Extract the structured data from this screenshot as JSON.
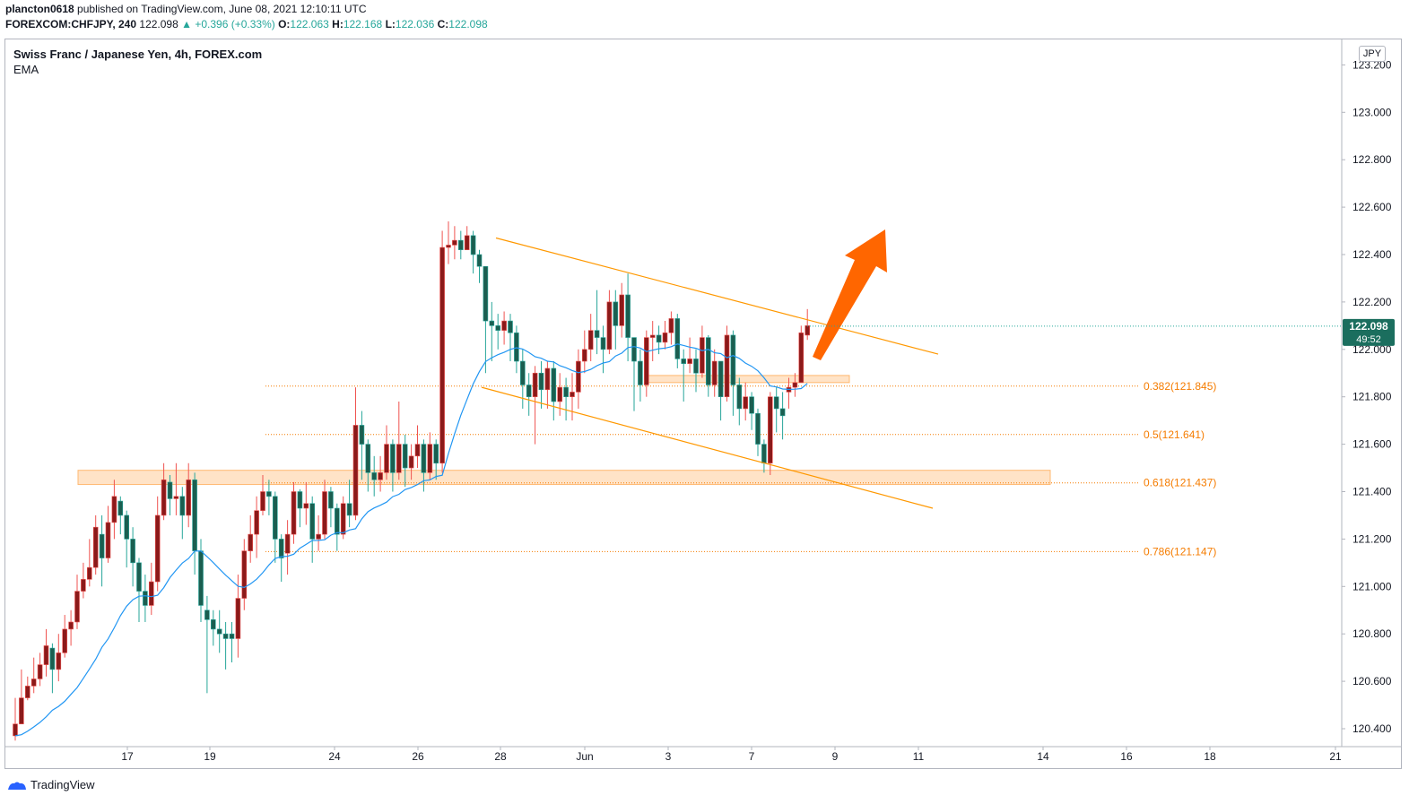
{
  "header": {
    "publisher": "plancton0618",
    "published_text": "published on TradingView.com, June 08, 2021 12:10:11 UTC",
    "symbol": "FOREXCOM:CHFJPY, 240",
    "last": "122.098",
    "change": "▲ +0.396 (+0.33%)",
    "o_label": "O:",
    "o_val": "122.063",
    "h_label": "H:",
    "h_val": "122.168",
    "l_label": "L:",
    "l_val": "122.036",
    "c_label": "C:",
    "c_val": "122.098"
  },
  "legend": {
    "title": "Swiss Franc / Japanese Yen, 4h, FOREX.com",
    "indicator": "EMA"
  },
  "currency_badge": "JPY",
  "footer": {
    "brand": "TradingView"
  },
  "colors": {
    "up": "#26a69a",
    "down": "#ef5350",
    "body_up": "#1b5e50",
    "body_down": "#8b1a1a",
    "ema": "#2196f3",
    "fib": "#f57c00",
    "zone": "#ffcc99",
    "arrow": "#ff6600",
    "channel": "#ff9800"
  },
  "chart_data": {
    "type": "candlestick",
    "title": "Swiss Franc / Japanese Yen, 4h, FOREX.com",
    "ylim": [
      120.32,
      123.3
    ],
    "yticks": [
      "123.200",
      "123.000",
      "122.800",
      "122.600",
      "122.400",
      "122.200",
      "122.000",
      "121.800",
      "121.600",
      "121.400",
      "121.200",
      "121.000",
      "120.800",
      "120.600",
      "120.400"
    ],
    "xticks": [
      "17",
      "19",
      "24",
      "26",
      "28",
      "Jun",
      "3",
      "7",
      "9",
      "11",
      "14",
      "16",
      "18",
      "21"
    ],
    "current_price": "122.098",
    "countdown": "49:52",
    "fib_levels": [
      {
        "label": "0.382(121.845)",
        "value": 121.845
      },
      {
        "label": "0.5(121.641)",
        "value": 121.641
      },
      {
        "label": "0.618(121.437)",
        "value": 121.437
      },
      {
        "label": "0.786(121.147)",
        "value": 121.147
      }
    ],
    "zones": [
      {
        "name": "support-zone",
        "y_top": 121.49,
        "y_bottom": 121.43
      },
      {
        "name": "resistance-zone",
        "y_top": 121.89,
        "y_bottom": 121.86
      }
    ],
    "channel": {
      "upper": [
        {
          "t": 0,
          "v": 122.47
        },
        {
          "t": 1,
          "v": 121.98
        }
      ],
      "lower": [
        {
          "t": 0,
          "v": 121.84
        },
        {
          "t": 1,
          "v": 121.33
        }
      ]
    },
    "candles": [
      [
        120.42,
        120.53,
        120.35,
        120.37
      ],
      [
        120.53,
        120.65,
        120.42,
        120.42
      ],
      [
        120.58,
        120.62,
        120.52,
        120.53
      ],
      [
        120.61,
        120.7,
        120.55,
        120.58
      ],
      [
        120.67,
        120.72,
        120.58,
        120.61
      ],
      [
        120.75,
        120.82,
        120.62,
        120.67
      ],
      [
        120.65,
        120.76,
        120.55,
        120.74
      ],
      [
        120.72,
        120.8,
        120.6,
        120.65
      ],
      [
        120.82,
        120.88,
        120.7,
        120.72
      ],
      [
        120.85,
        120.9,
        120.75,
        120.82
      ],
      [
        120.98,
        121.05,
        120.82,
        120.85
      ],
      [
        121.03,
        121.1,
        120.95,
        120.98
      ],
      [
        121.08,
        121.2,
        121.0,
        121.03
      ],
      [
        121.25,
        121.3,
        121.05,
        121.08
      ],
      [
        121.12,
        121.3,
        121.0,
        121.22
      ],
      [
        121.27,
        121.34,
        121.1,
        121.12
      ],
      [
        121.38,
        121.45,
        121.2,
        121.27
      ],
      [
        121.3,
        121.38,
        121.22,
        121.36
      ],
      [
        121.2,
        121.32,
        121.08,
        121.3
      ],
      [
        121.1,
        121.25,
        121.0,
        121.2
      ],
      [
        120.98,
        121.12,
        120.85,
        121.1
      ],
      [
        120.92,
        121.05,
        120.85,
        120.98
      ],
      [
        121.02,
        121.1,
        120.88,
        120.92
      ],
      [
        121.3,
        121.38,
        120.98,
        121.02
      ],
      [
        121.45,
        121.52,
        121.28,
        121.3
      ],
      [
        121.37,
        121.47,
        121.3,
        121.44
      ],
      [
        121.38,
        121.52,
        121.3,
        121.37
      ],
      [
        121.3,
        121.42,
        121.2,
        121.38
      ],
      [
        121.45,
        121.52,
        121.25,
        121.3
      ],
      [
        121.15,
        121.48,
        121.05,
        121.45
      ],
      [
        120.92,
        121.2,
        120.85,
        121.15
      ],
      [
        120.86,
        120.96,
        120.55,
        120.9
      ],
      [
        120.82,
        120.9,
        120.75,
        120.86
      ],
      [
        120.8,
        120.9,
        120.72,
        120.82
      ],
      [
        120.78,
        120.85,
        120.65,
        120.8
      ],
      [
        120.78,
        120.85,
        120.68,
        120.8
      ],
      [
        120.95,
        121.05,
        120.7,
        120.78
      ],
      [
        121.15,
        121.2,
        120.9,
        120.95
      ],
      [
        121.22,
        121.3,
        121.1,
        121.15
      ],
      [
        121.32,
        121.38,
        121.12,
        121.22
      ],
      [
        121.4,
        121.47,
        121.3,
        121.32
      ],
      [
        121.38,
        121.45,
        121.3,
        121.4
      ],
      [
        121.2,
        121.4,
        121.1,
        121.38
      ],
      [
        121.12,
        121.22,
        121.02,
        121.2
      ],
      [
        121.22,
        121.28,
        121.05,
        121.14
      ],
      [
        121.4,
        121.44,
        121.18,
        121.22
      ],
      [
        121.33,
        121.41,
        121.25,
        121.4
      ],
      [
        121.35,
        121.44,
        121.26,
        121.33
      ],
      [
        121.2,
        121.38,
        121.1,
        121.35
      ],
      [
        121.22,
        121.3,
        121.15,
        121.2
      ],
      [
        121.4,
        121.45,
        121.2,
        121.22
      ],
      [
        121.33,
        121.42,
        121.25,
        121.4
      ],
      [
        121.22,
        121.35,
        121.15,
        121.33
      ],
      [
        121.35,
        121.38,
        121.2,
        121.22
      ],
      [
        121.3,
        121.45,
        121.25,
        121.35
      ],
      [
        121.68,
        121.84,
        121.28,
        121.3
      ],
      [
        121.6,
        121.74,
        121.45,
        121.68
      ],
      [
        121.48,
        121.62,
        121.4,
        121.6
      ],
      [
        121.45,
        121.55,
        121.38,
        121.48
      ],
      [
        121.48,
        121.55,
        121.4,
        121.45
      ],
      [
        121.6,
        121.68,
        121.45,
        121.48
      ],
      [
        121.48,
        121.62,
        121.4,
        121.6
      ],
      [
        121.6,
        121.78,
        121.45,
        121.48
      ],
      [
        121.5,
        121.64,
        121.42,
        121.6
      ],
      [
        121.55,
        121.6,
        121.45,
        121.5
      ],
      [
        121.6,
        121.68,
        121.5,
        121.55
      ],
      [
        121.48,
        121.62,
        121.4,
        121.6
      ],
      [
        121.6,
        121.65,
        121.45,
        121.48
      ],
      [
        121.52,
        121.62,
        121.45,
        121.6
      ],
      [
        122.43,
        122.5,
        121.48,
        121.52
      ],
      [
        122.44,
        122.54,
        122.36,
        122.43
      ],
      [
        122.46,
        122.52,
        122.38,
        122.44
      ],
      [
        122.42,
        122.5,
        122.38,
        122.46
      ],
      [
        122.48,
        122.52,
        122.42,
        122.42
      ],
      [
        122.4,
        122.5,
        122.32,
        122.48
      ],
      [
        122.35,
        122.42,
        122.28,
        122.4
      ],
      [
        122.12,
        122.35,
        121.9,
        122.35
      ],
      [
        122.1,
        122.2,
        121.95,
        122.12
      ],
      [
        122.08,
        122.15,
        122.0,
        122.1
      ],
      [
        122.12,
        122.16,
        122.02,
        122.08
      ],
      [
        122.07,
        122.15,
        121.95,
        122.12
      ],
      [
        121.95,
        122.1,
        121.9,
        122.07
      ],
      [
        121.85,
        122.0,
        121.75,
        121.95
      ],
      [
        121.8,
        121.9,
        121.72,
        121.85
      ],
      [
        121.9,
        121.93,
        121.6,
        121.8
      ],
      [
        121.83,
        121.95,
        121.75,
        121.9
      ],
      [
        121.92,
        121.95,
        121.75,
        121.83
      ],
      [
        121.78,
        121.95,
        121.7,
        121.92
      ],
      [
        121.84,
        121.9,
        121.72,
        121.78
      ],
      [
        121.8,
        121.88,
        121.7,
        121.84
      ],
      [
        121.82,
        121.9,
        121.7,
        121.8
      ],
      [
        121.95,
        122.0,
        121.75,
        121.82
      ],
      [
        122.0,
        122.08,
        121.9,
        121.95
      ],
      [
        122.08,
        122.15,
        121.95,
        122.0
      ],
      [
        122.05,
        122.25,
        121.98,
        122.08
      ],
      [
        122.0,
        122.1,
        121.9,
        122.05
      ],
      [
        122.2,
        122.25,
        121.98,
        122.0
      ],
      [
        122.1,
        122.25,
        122.0,
        122.2
      ],
      [
        122.23,
        122.28,
        122.05,
        122.1
      ],
      [
        122.05,
        122.32,
        121.95,
        122.23
      ],
      [
        121.95,
        122.05,
        121.74,
        122.05
      ],
      [
        121.85,
        122.0,
        121.78,
        121.95
      ],
      [
        122.05,
        122.08,
        121.8,
        121.85
      ],
      [
        122.06,
        122.12,
        121.95,
        122.05
      ],
      [
        122.03,
        122.1,
        121.98,
        122.06
      ],
      [
        122.07,
        122.12,
        122.0,
        122.03
      ],
      [
        122.13,
        122.16,
        122.02,
        122.07
      ],
      [
        121.96,
        122.15,
        121.92,
        122.13
      ],
      [
        121.94,
        122.0,
        121.78,
        121.96
      ],
      [
        121.96,
        122.05,
        121.9,
        121.94
      ],
      [
        121.9,
        122.0,
        121.82,
        121.96
      ],
      [
        122.05,
        122.1,
        121.88,
        121.9
      ],
      [
        121.85,
        122.06,
        121.8,
        122.05
      ],
      [
        121.95,
        122.0,
        121.8,
        121.85
      ],
      [
        121.8,
        121.95,
        121.7,
        121.95
      ],
      [
        122.06,
        122.1,
        121.78,
        121.8
      ],
      [
        121.85,
        122.08,
        121.72,
        122.06
      ],
      [
        121.75,
        121.88,
        121.68,
        121.85
      ],
      [
        121.8,
        121.86,
        121.7,
        121.75
      ],
      [
        121.73,
        121.82,
        121.66,
        121.8
      ],
      [
        121.6,
        121.75,
        121.55,
        121.73
      ],
      [
        121.52,
        121.62,
        121.48,
        121.6
      ],
      [
        121.8,
        121.82,
        121.47,
        121.52
      ],
      [
        121.75,
        121.84,
        121.65,
        121.8
      ],
      [
        121.72,
        121.82,
        121.62,
        121.75
      ],
      [
        121.84,
        121.88,
        121.75,
        121.82
      ],
      [
        121.86,
        121.9,
        121.8,
        121.84
      ],
      [
        122.07,
        122.1,
        121.86,
        121.86
      ],
      [
        122.1,
        122.17,
        122.04,
        122.06
      ]
    ]
  }
}
